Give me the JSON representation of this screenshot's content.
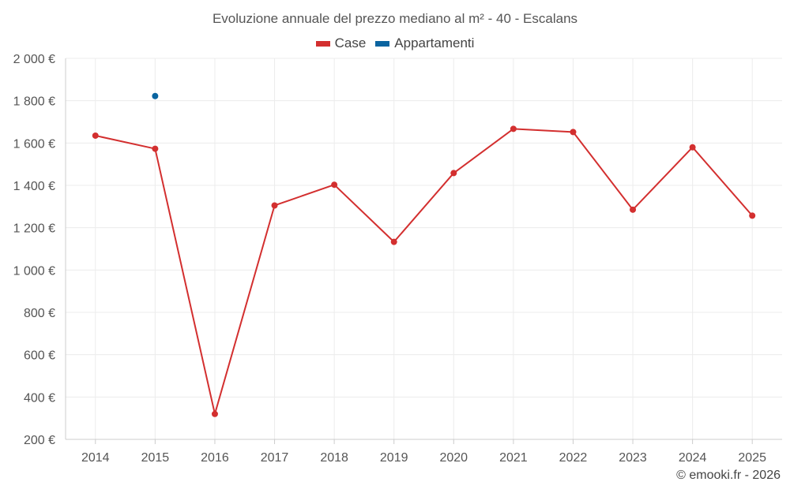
{
  "chart_data": {
    "type": "line",
    "title": "Evoluzione annuale del prezzo mediano al m² - 40 - Escalans",
    "x": [
      "2014",
      "2015",
      "2016",
      "2017",
      "2018",
      "2019",
      "2020",
      "2021",
      "2022",
      "2023",
      "2024",
      "2025"
    ],
    "ylim": [
      200,
      2000
    ],
    "yticks": [
      200,
      400,
      600,
      800,
      1000,
      1200,
      1400,
      1600,
      1800,
      2000
    ],
    "ytick_labels": [
      "200 €",
      "400 €",
      "600 €",
      "800 €",
      "1 000 €",
      "1 200 €",
      "1 400 €",
      "1 600 €",
      "1 800 €",
      "2 000 €"
    ],
    "grid": true,
    "legend_position": "top-center",
    "series": [
      {
        "name": "Case",
        "color": "#d32f2f",
        "values": [
          1635,
          1573,
          320,
          1305,
          1403,
          1133,
          1458,
          1667,
          1652,
          1285,
          1580,
          1257
        ]
      },
      {
        "name": "Appartamenti",
        "color": "#0a64a0",
        "values": [
          null,
          1822,
          null,
          null,
          null,
          null,
          null,
          null,
          null,
          null,
          null,
          null
        ]
      }
    ]
  },
  "credit": "© emooki.fr - 2026"
}
